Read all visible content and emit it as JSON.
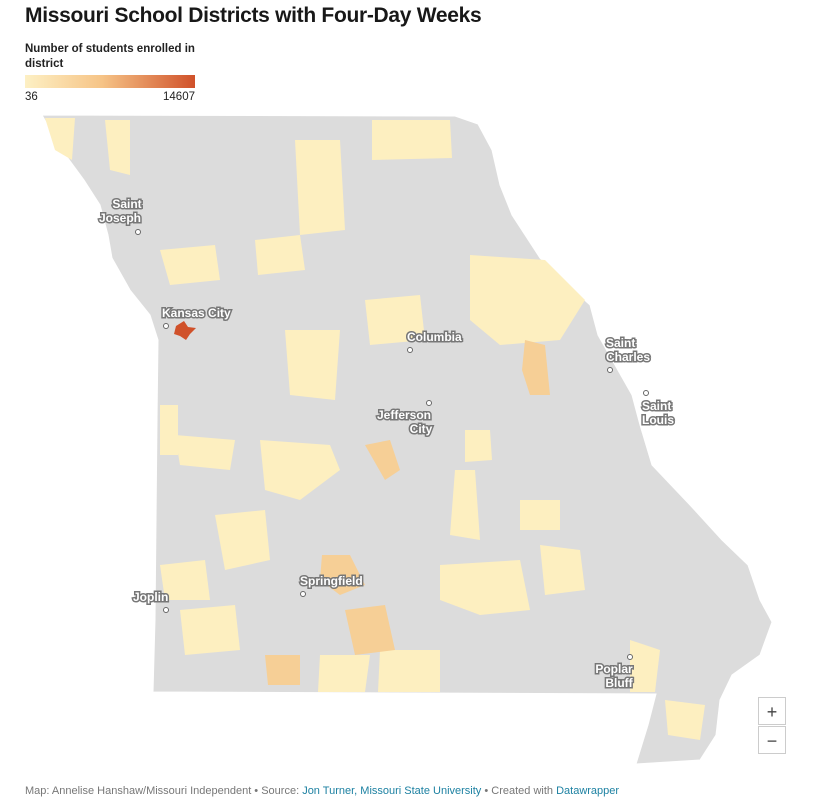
{
  "header": {
    "title": "Missouri School Districts with Four-Day Weeks"
  },
  "legend": {
    "title_lines": [
      "Number of students enrolled in",
      "district"
    ],
    "min": 36,
    "max": 14607
  },
  "cities": [
    {
      "lines": [
        "Saint",
        "Joseph"
      ]
    },
    {
      "lines": [
        "Kansas City"
      ]
    },
    {
      "lines": [
        "Columbia"
      ]
    },
    {
      "lines": [
        "Saint",
        "Charles"
      ]
    },
    {
      "lines": [
        "Saint",
        "Louis"
      ]
    },
    {
      "lines": [
        "Jefferson",
        "City"
      ]
    },
    {
      "lines": [
        "Springfield"
      ]
    },
    {
      "lines": [
        "Joplin"
      ]
    },
    {
      "lines": [
        "Poplar",
        "Bluff"
      ]
    }
  ],
  "controls": {
    "zoom_in": "+",
    "zoom_out": "−"
  },
  "footer": {
    "credit": "Map: Annelise Hanshaw/Missouri Independent • Source: ",
    "source_link": "Jon Turner, Missouri State University",
    "created": " • Created with ",
    "tool_link": "Datawrapper"
  }
}
